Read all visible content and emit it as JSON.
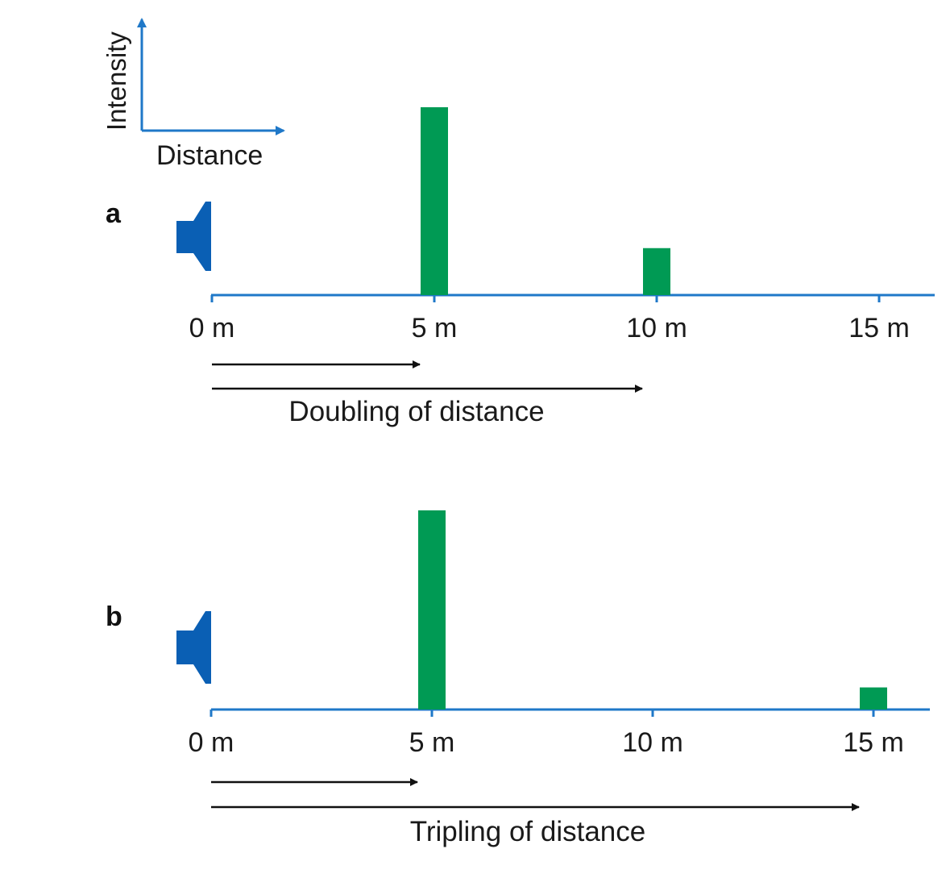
{
  "legend": {
    "y_label": "Intensity",
    "x_label": "Distance"
  },
  "colors": {
    "axis_blue": "#1f78c8",
    "speaker_blue": "#0a5fb4",
    "bar_green": "#009a54",
    "arrow_black": "#111111"
  },
  "panels": [
    {
      "letter": "a",
      "ticks": [
        "0 m",
        "5 m",
        "10 m",
        "15 m"
      ],
      "caption": "Doubling of distance",
      "bars": [
        {
          "distance_m": 5,
          "relative_intensity": 1.0
        },
        {
          "distance_m": 10,
          "relative_intensity": 0.25
        }
      ],
      "arrows_to_m": [
        5,
        10
      ]
    },
    {
      "letter": "b",
      "ticks": [
        "0 m",
        "5 m",
        "10 m",
        "15 m"
      ],
      "caption": "Tripling of distance",
      "bars": [
        {
          "distance_m": 5,
          "relative_intensity": 1.0
        },
        {
          "distance_m": 15,
          "relative_intensity": 0.111
        }
      ],
      "arrows_to_m": [
        5,
        15
      ]
    }
  ]
}
